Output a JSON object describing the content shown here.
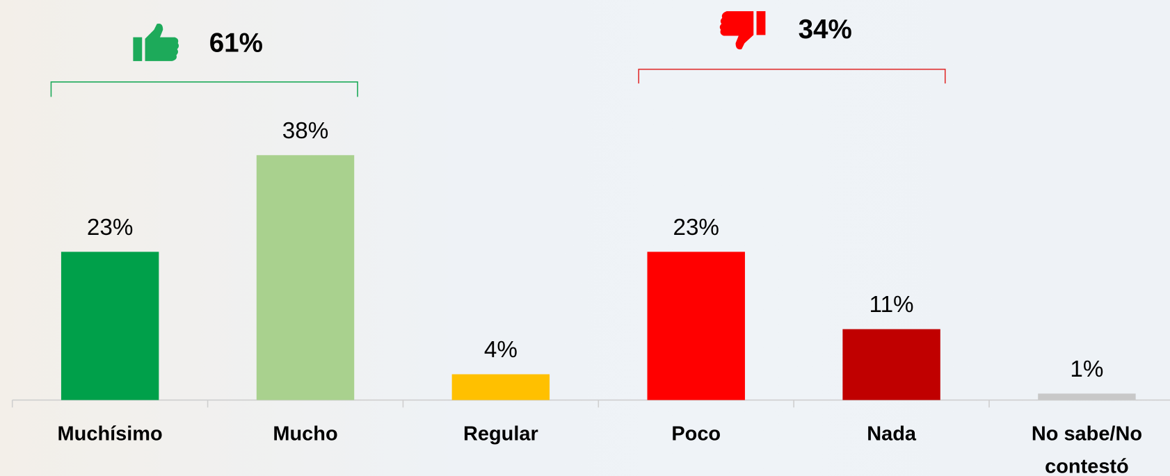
{
  "chart_data": {
    "type": "bar",
    "categories": [
      "Muchísimo",
      "Mucho",
      "Regular",
      "Poco",
      "Nada",
      "No sabe/No contestó"
    ],
    "values": [
      23,
      38,
      4,
      23,
      11,
      1
    ],
    "value_labels": [
      "23%",
      "38%",
      "4%",
      "23%",
      "11%",
      "1%"
    ],
    "colors": [
      "#00a04a",
      "#a9d18e",
      "#ffc000",
      "#ff0000",
      "#c00000",
      "#c8c8c8"
    ],
    "ylim": [
      0,
      40
    ],
    "annotations": [
      "61%",
      "34%"
    ]
  }
}
